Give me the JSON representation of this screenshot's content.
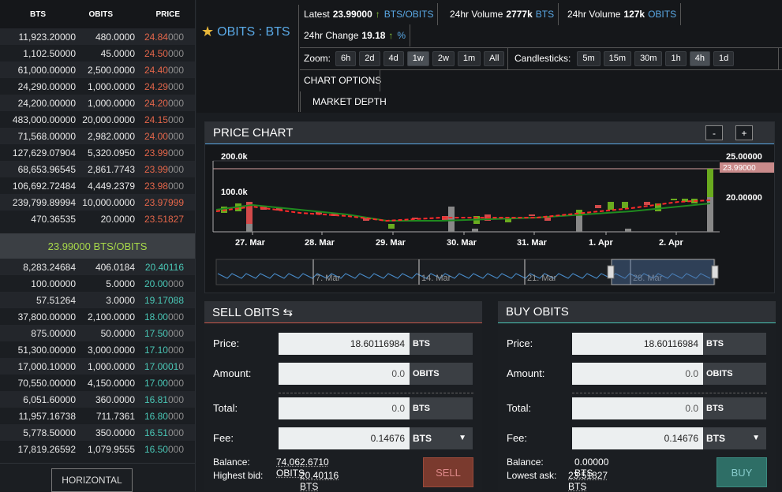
{
  "orderbook": {
    "headers": {
      "bts": "BTS",
      "obits": "OBITS",
      "price": "PRICE"
    },
    "asks": [
      [
        "11,923.20000",
        "480.0000",
        "24.84",
        "000"
      ],
      [
        "1,102.50000",
        "45.0000",
        "24.50",
        "000"
      ],
      [
        "61,000.00000",
        "2,500.0000",
        "24.40",
        "000"
      ],
      [
        "24,290.00000",
        "1,000.0000",
        "24.29",
        "000"
      ],
      [
        "24,200.00000",
        "1,000.0000",
        "24.20",
        "000"
      ],
      [
        "483,000.00000",
        "20,000.0000",
        "24.15",
        "000"
      ],
      [
        "71,568.00000",
        "2,982.0000",
        "24.00",
        "000"
      ],
      [
        "127,629.07904",
        "5,320.0950",
        "23.99",
        "000"
      ],
      [
        "68,653.96545",
        "2,861.7743",
        "23.99",
        "000"
      ],
      [
        "106,692.72484",
        "4,449.2379",
        "23.98",
        "000"
      ],
      [
        "239,799.89994",
        "10,000.0000",
        "23.97999",
        ""
      ],
      [
        "470.36535",
        "20.0000",
        "23.51827",
        ""
      ]
    ],
    "mid": "23.99000 BTS/OBITS",
    "bids": [
      [
        "8,283.24684",
        "406.0184",
        "20.40116",
        ""
      ],
      [
        "100.00000",
        "5.0000",
        "20.00",
        "000"
      ],
      [
        "57.51264",
        "3.0000",
        "19.17088",
        ""
      ],
      [
        "37,800.00000",
        "2,100.0000",
        "18.00",
        "000"
      ],
      [
        "875.00000",
        "50.0000",
        "17.50",
        "000"
      ],
      [
        "51,300.00000",
        "3,000.0000",
        "17.10",
        "000"
      ],
      [
        "17,000.10000",
        "1,000.0000",
        "17.0001",
        "0"
      ],
      [
        "70,550.00000",
        "4,150.0000",
        "17.00",
        "000"
      ],
      [
        "6,051.60000",
        "360.0000",
        "16.81",
        "000"
      ],
      [
        "11,957.16738",
        "711.7361",
        "16.80",
        "000"
      ],
      [
        "5,778.50000",
        "350.0000",
        "16.51",
        "000"
      ],
      [
        "17,819.26592",
        "1,079.9555",
        "16.50",
        "000"
      ]
    ],
    "horizontal_label": "HORIZONTAL"
  },
  "market": {
    "star": "★",
    "title": "OBITS : BTS",
    "latest_label": "Latest",
    "latest_value": "23.99000",
    "latest_arrow": "↑",
    "latest_unit": "BTS/OBITS",
    "vol1_label": "24hr Volume",
    "vol1_value": "2777k",
    "vol1_unit": "BTS",
    "vol2_label": "24hr Volume",
    "vol2_value": "127k",
    "vol2_unit": "OBITS",
    "change_label": "24hr Change",
    "change_value": "19.18",
    "change_arrow": "↑",
    "change_unit": "%",
    "zoom_label": "Zoom:",
    "zoom": [
      "6h",
      "2d",
      "4d",
      "1w",
      "2w",
      "1m",
      "All"
    ],
    "zoom_active": "1w",
    "candle_label": "Candlesticks:",
    "candles": [
      "5m",
      "15m",
      "30m",
      "1h",
      "4h",
      "1d"
    ],
    "candle_active": "4h",
    "chart_options": "CHART OPTIONS",
    "market_depth": "MARKET DEPTH"
  },
  "chart": {
    "title": "PRICE CHART",
    "minus": "-",
    "plus": "+",
    "vol_ticks": [
      "200.0k",
      "100.0k"
    ],
    "price_ticks": [
      "25.00000",
      "20.00000"
    ],
    "current_price": "23.99000",
    "x_labels": [
      "27. Mar",
      "28. Mar",
      "29. Mar",
      "30. Mar",
      "31. Mar",
      "1. Apr",
      "2. Apr"
    ],
    "nav_labels": [
      "7. Mar",
      "14. Mar",
      "21. Mar",
      "28. Mar"
    ],
    "colors": {
      "up": "#6aab1f",
      "down": "#d24a4a",
      "ma_red": "#ff2a2a",
      "ma_green": "#1f8a1f",
      "volume": "#888888",
      "nav": "#4a8fd0"
    }
  },
  "sell": {
    "title": "SELL OBITS ⇆",
    "price_label": "Price:",
    "price_value": "18.60116984",
    "price_unit": "BTS",
    "amount_label": "Amount:",
    "amount_value": "0.0",
    "amount_unit": "OBITS",
    "total_label": "Total:",
    "total_value": "0.0",
    "total_unit": "BTS",
    "fee_label": "Fee:",
    "fee_value": "0.14676",
    "fee_unit": "BTS",
    "fee_caret": "▼",
    "balance_label": "Balance:",
    "balance_value": "74,062.6710 OBITS",
    "best_label": "Highest bid:",
    "best_value": "20.40116 BTS",
    "button": "SELL"
  },
  "buy": {
    "title": "BUY OBITS",
    "price_label": "Price:",
    "price_value": "18.60116984",
    "price_unit": "BTS",
    "amount_label": "Amount:",
    "amount_value": "0.0",
    "amount_unit": "OBITS",
    "total_label": "Total:",
    "total_value": "0.0",
    "total_unit": "BTS",
    "fee_label": "Fee:",
    "fee_value": "0.14676",
    "fee_unit": "BTS",
    "fee_caret": "▼",
    "balance_label": "Balance:",
    "balance_value": "0.00000 BTS",
    "best_label": "Lowest ask:",
    "best_value": "23.51827 BTS",
    "button": "BUY"
  }
}
